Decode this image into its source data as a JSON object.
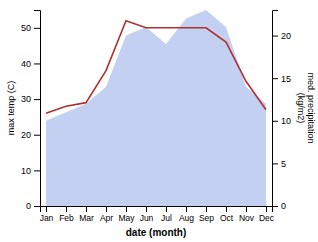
{
  "chart_data": {
    "type": "line",
    "categories": [
      "Jan",
      "Feb",
      "Mar",
      "Apr",
      "May",
      "Jun",
      "Jul",
      "Aug",
      "Sep",
      "Oct",
      "Nov",
      "Dec"
    ],
    "series": [
      {
        "type": "area",
        "axis": "y2",
        "color": "#b8c8ee",
        "values": [
          10,
          11,
          12,
          14,
          20,
          21,
          19,
          22,
          23,
          21,
          14,
          12
        ]
      },
      {
        "type": "line",
        "color": "#b03030",
        "values": [
          26,
          28,
          29,
          38,
          52,
          50,
          50,
          50,
          50,
          46,
          35,
          27
        ]
      }
    ],
    "xlabel": "date (month)",
    "ylabel": "max temp (C)",
    "y2label": "med. precipitation\n(kg/m2)",
    "ylim": [
      0,
      55
    ],
    "yticks": [
      0,
      10,
      20,
      30,
      40,
      50
    ],
    "y2lim": [
      0,
      23
    ],
    "y2ticks": [
      0,
      5,
      10,
      15,
      20
    ]
  }
}
